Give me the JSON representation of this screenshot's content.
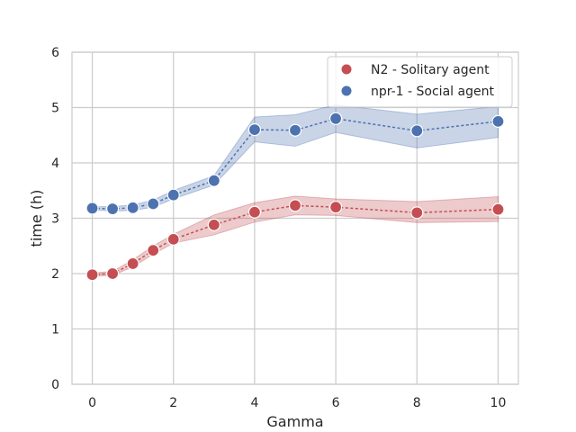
{
  "chart_data": {
    "type": "line",
    "title": "",
    "xlabel": "Gamma",
    "ylabel": "time (h)",
    "xlim": [
      -0.5,
      10.5
    ],
    "ylim": [
      0,
      6
    ],
    "xticks": [
      0,
      2,
      4,
      6,
      8,
      10
    ],
    "yticks": [
      0,
      1,
      2,
      3,
      4,
      5,
      6
    ],
    "grid": true,
    "legend_position": "top-right",
    "x": [
      0,
      0.5,
      1,
      1.5,
      2,
      3,
      4,
      5,
      6,
      8,
      10
    ],
    "series": [
      {
        "name": "N2 - Solitary agent",
        "color": "#c44e52",
        "values": [
          1.98,
          2.0,
          2.18,
          2.42,
          2.62,
          2.88,
          3.11,
          3.23,
          3.2,
          3.1,
          3.16
        ],
        "ci_low": [
          1.95,
          1.97,
          2.12,
          2.35,
          2.55,
          2.7,
          2.93,
          3.06,
          3.05,
          2.92,
          2.94
        ],
        "ci_high": [
          2.01,
          2.04,
          2.25,
          2.5,
          2.71,
          3.06,
          3.28,
          3.4,
          3.35,
          3.3,
          3.39
        ]
      },
      {
        "name": "npr-1 - Social agent",
        "color": "#4c72b0",
        "values": [
          3.18,
          3.17,
          3.19,
          3.26,
          3.42,
          3.68,
          4.6,
          4.59,
          4.8,
          4.58,
          4.75
        ],
        "ci_low": [
          3.15,
          3.13,
          3.14,
          3.2,
          3.35,
          3.6,
          4.38,
          4.3,
          4.55,
          4.27,
          4.46
        ],
        "ci_high": [
          3.21,
          3.21,
          3.24,
          3.33,
          3.5,
          3.77,
          4.83,
          4.87,
          5.05,
          4.88,
          5.02
        ]
      }
    ]
  }
}
